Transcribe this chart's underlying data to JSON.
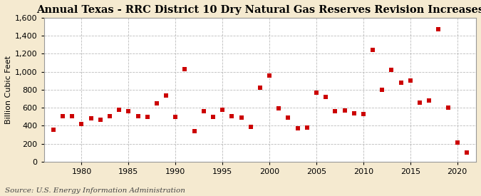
{
  "title": "Annual Texas - RRC District 10 Dry Natural Gas Reserves Revision Increases",
  "ylabel": "Billion Cubic Feet",
  "source": "Source: U.S. Energy Information Administration",
  "years": [
    1977,
    1978,
    1979,
    1980,
    1981,
    1982,
    1983,
    1984,
    1985,
    1986,
    1987,
    1988,
    1989,
    1990,
    1991,
    1992,
    1993,
    1994,
    1995,
    1996,
    1997,
    1998,
    1999,
    2000,
    2001,
    2002,
    2003,
    2004,
    2005,
    2006,
    2007,
    2008,
    2009,
    2010,
    2011,
    2012,
    2013,
    2014,
    2015,
    2016,
    2017,
    2018,
    2019,
    2020,
    2021
  ],
  "values": [
    360,
    510,
    510,
    420,
    480,
    470,
    510,
    580,
    560,
    510,
    500,
    650,
    740,
    500,
    1030,
    340,
    560,
    500,
    580,
    510,
    490,
    390,
    820,
    960,
    590,
    490,
    370,
    380,
    770,
    720,
    560,
    570,
    540,
    530,
    1240,
    800,
    1020,
    880,
    900,
    660,
    680,
    1470,
    600,
    210,
    100
  ],
  "marker_color": "#cc0000",
  "marker_size": 4,
  "bg_color": "#f5ead0",
  "plot_bg_color": "#ffffff",
  "ylim": [
    0,
    1600
  ],
  "yticks": [
    0,
    200,
    400,
    600,
    800,
    1000,
    1200,
    1400,
    1600
  ],
  "xlim": [
    1976,
    2022
  ],
  "xticks": [
    1980,
    1985,
    1990,
    1995,
    2000,
    2005,
    2010,
    2015,
    2020
  ],
  "grid_color": "#aaaaaa",
  "grid_style": "--",
  "title_fontsize": 10.5,
  "ylabel_fontsize": 8,
  "tick_fontsize": 8,
  "source_fontsize": 7.5
}
